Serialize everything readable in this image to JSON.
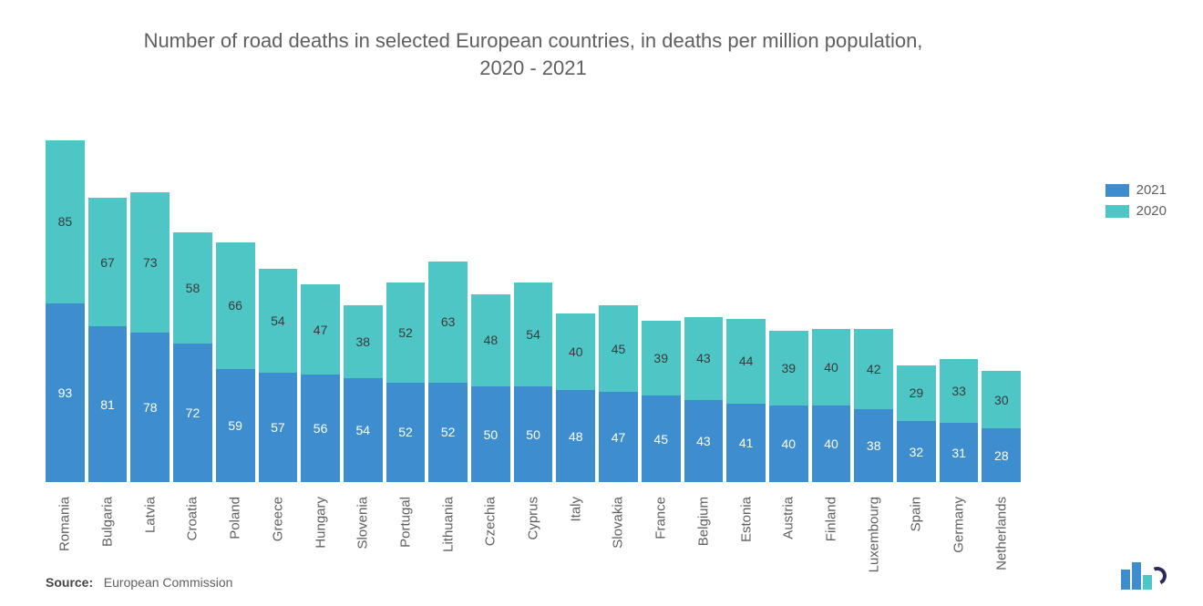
{
  "chart": {
    "type": "bar-stacked",
    "title": "Number of road deaths in selected European countries, in deaths per million population, 2020 - 2021",
    "title_fontsize": 22,
    "title_color": "#5f5f5f",
    "background_color": "#ffffff",
    "label_fontsize": 15,
    "label_color": "#5f5f5f",
    "value_fontsize": 14,
    "ymax": 180,
    "bar_gap": 4,
    "series": [
      {
        "name": "2021",
        "color": "#3e8ecf",
        "text_color": "#ffffff"
      },
      {
        "name": "2020",
        "color": "#4ec6c6",
        "text_color": "#3a3a3a"
      }
    ],
    "categories": [
      "Romania",
      "Bulgaria",
      "Latvia",
      "Croatia",
      "Poland",
      "Greece",
      "Hungary",
      "Slovenia",
      "Portugal",
      "Lithuania",
      "Czechia",
      "Cyprus",
      "Italy",
      "Slovakia",
      "France",
      "Belgium",
      "Estonia",
      "Austria",
      "Finland",
      "Luxembourg",
      "Spain",
      "Germany",
      "Netherlands"
    ],
    "values_2021": [
      93,
      81,
      78,
      72,
      59,
      57,
      56,
      54,
      52,
      52,
      50,
      50,
      48,
      47,
      45,
      43,
      41,
      40,
      40,
      38,
      32,
      31,
      28
    ],
    "values_2020": [
      85,
      67,
      73,
      58,
      66,
      54,
      47,
      38,
      52,
      63,
      48,
      54,
      40,
      45,
      39,
      43,
      44,
      39,
      40,
      42,
      29,
      33,
      30
    ]
  },
  "legend": {
    "items": [
      {
        "label": "2021",
        "color": "#3e8ecf"
      },
      {
        "label": "2020",
        "color": "#4ec6c6"
      }
    ]
  },
  "source": {
    "prefix": "Source:",
    "text": "European Commission"
  },
  "logo": {
    "bar_colors": [
      "#3e8ecf",
      "#3e8ecf",
      "#4ec6c6"
    ],
    "arc_color": "#2a2a5a"
  }
}
